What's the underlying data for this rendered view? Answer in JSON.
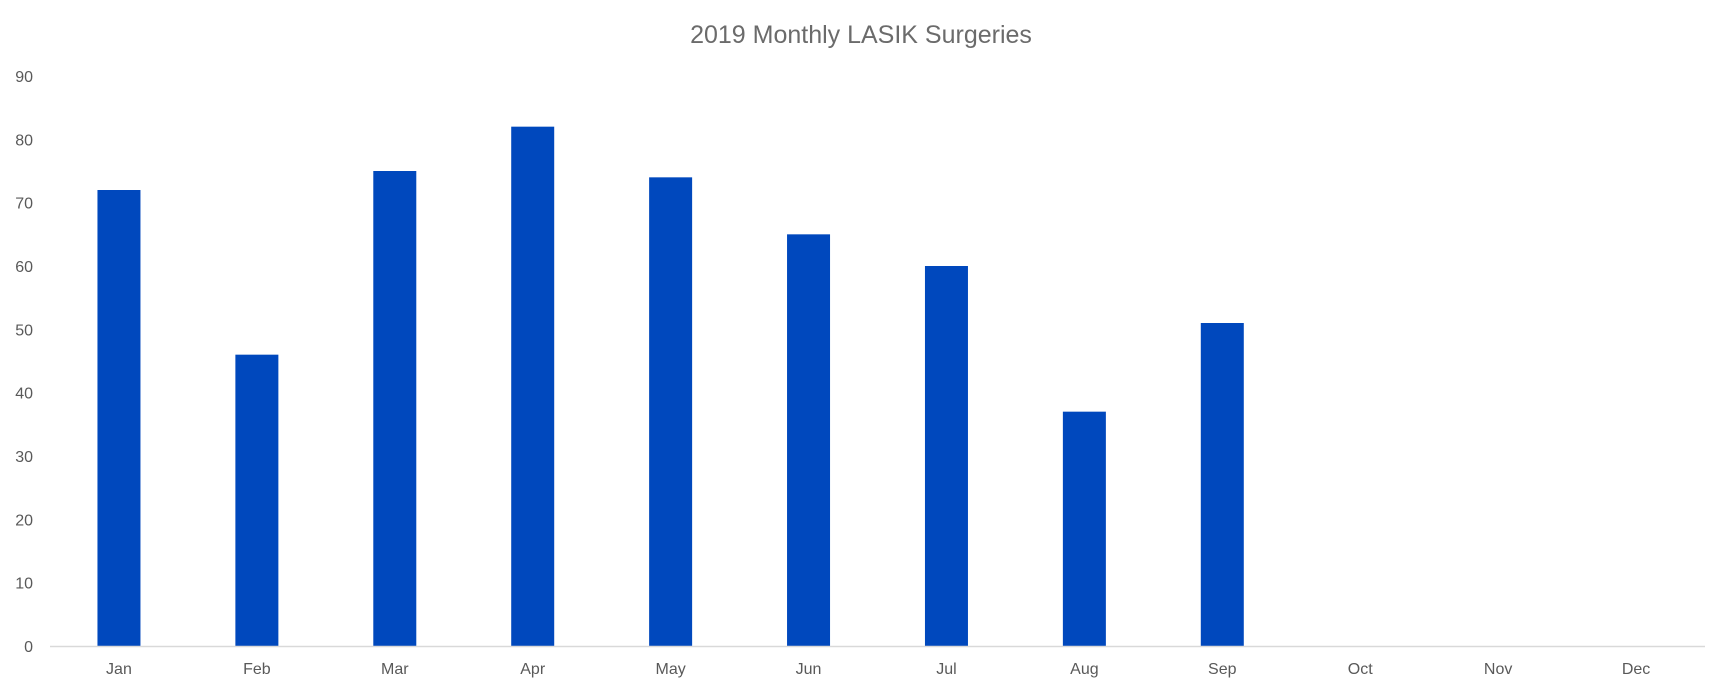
{
  "chart_data": {
    "type": "bar",
    "title": "2019 Monthly LASIK Surgeries",
    "xlabel": "",
    "ylabel": "",
    "categories": [
      "Jan",
      "Feb",
      "Mar",
      "Apr",
      "May",
      "Jun",
      "Jul",
      "Aug",
      "Sep",
      "Oct",
      "Nov",
      "Dec"
    ],
    "values": [
      72,
      46,
      75,
      82,
      74,
      65,
      60,
      37,
      51,
      null,
      null,
      null
    ],
    "ylim": [
      0,
      90
    ],
    "yticks": [
      0,
      10,
      20,
      30,
      40,
      50,
      60,
      70,
      80,
      90
    ],
    "grid": false,
    "legend": "none",
    "bar_color": "#0048bd",
    "axis_color": "#d9d9d9"
  }
}
